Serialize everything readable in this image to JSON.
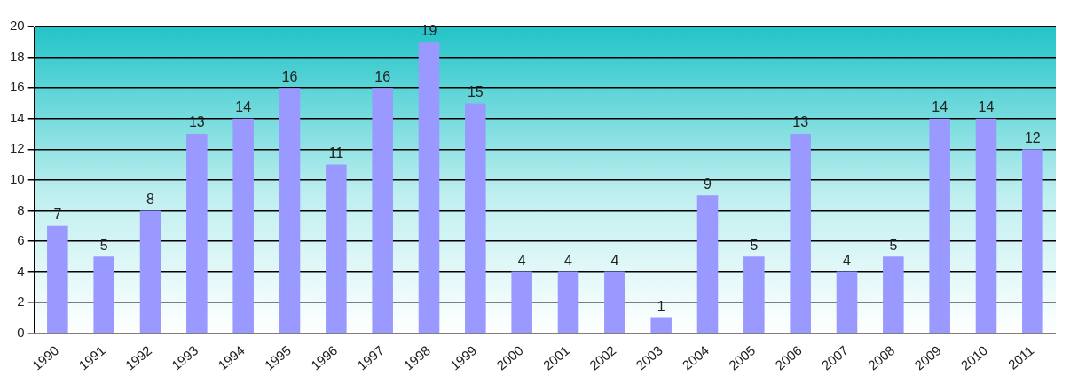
{
  "chart_data": {
    "type": "bar",
    "categories": [
      "1990",
      "1991",
      "1992",
      "1993",
      "1994",
      "1995",
      "1996",
      "1997",
      "1998",
      "1999",
      "2000",
      "2001",
      "2002",
      "2003",
      "2004",
      "2005",
      "2006",
      "2007",
      "2008",
      "2009",
      "2010",
      "2011"
    ],
    "values": [
      7,
      5,
      8,
      13,
      14,
      16,
      11,
      16,
      19,
      15,
      4,
      4,
      4,
      1,
      9,
      5,
      13,
      4,
      5,
      14,
      14,
      12
    ],
    "color": "#9999ff",
    "ylim": [
      0,
      20
    ],
    "yticks": [
      0,
      2,
      4,
      6,
      8,
      10,
      12,
      14,
      16,
      18,
      20
    ],
    "grid": "y",
    "legend": false,
    "data_labels": true
  }
}
